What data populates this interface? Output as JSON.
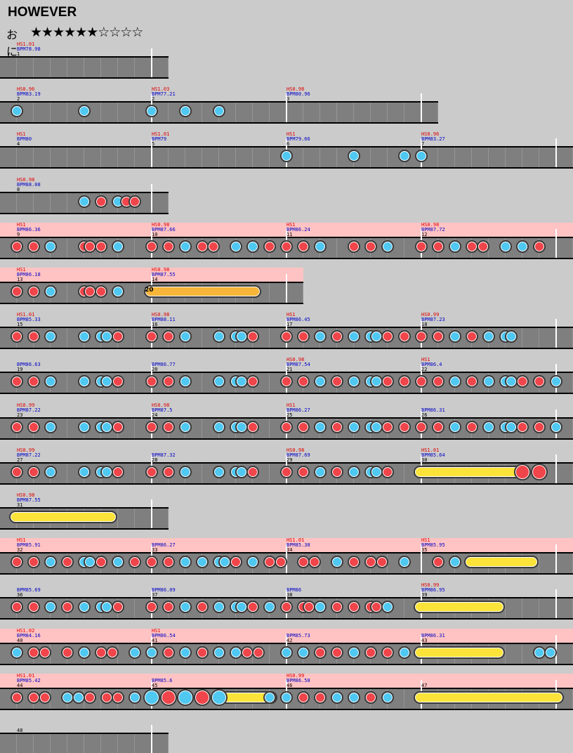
{
  "song": {
    "title": "HOWEVER",
    "difficulty": "おに",
    "stars": "★★★★★★☆☆☆☆",
    "stars_filled": 6,
    "stars_total": 10
  },
  "colors": {
    "background": "#cbcbcb",
    "lane": "#7f7f7f",
    "gogo": "#ffc3c3",
    "don": "#f0454a",
    "ka": "#4fc8f2",
    "roll": "#fbe33a",
    "balloon": "#f7b53a",
    "hs_text": "#e00000",
    "bpm_text": "#0000c8"
  },
  "rows": [
    {
      "gogo": false,
      "measures": [
        {
          "hs": "HS1.01",
          "bpm": "BPM78.98",
          "num": "1"
        }
      ],
      "notes": []
    },
    {
      "gogo": false,
      "measures": [
        {
          "hs": "HS0.96",
          "bpm": "BPM83.19",
          "num": "2"
        },
        {
          "hs": "HS1.03",
          "bpm": "BPM77.21",
          "num": "2"
        },
        {
          "hs": "HS0.98",
          "bpm": "BPM80.96",
          "num": "3"
        }
      ],
      "notes": [
        "k@0",
        "k@4",
        "k@8",
        "k@10",
        "k@12"
      ]
    },
    {
      "gogo": false,
      "measures": [
        {
          "hs": "HS1",
          "bpm": "BPM80",
          "num": "4"
        },
        {
          "hs": "HS1.01",
          "bpm": "BPM79",
          "num": "5"
        },
        {
          "hs": "HS1",
          "bpm": "BPM79.66",
          "num": "6"
        },
        {
          "hs": "HS0.96",
          "bpm": "BPM83.27",
          "num": "7"
        }
      ],
      "notes": [
        "k@16",
        "k@20",
        "k@23",
        "k@24"
      ]
    },
    {
      "gogo": false,
      "measures": [
        {
          "hs": "HS0.98",
          "bpm": "BPM88.08",
          "num": "8"
        }
      ],
      "notes": [
        "k@4",
        "d@5",
        "k@6",
        "d@6.5",
        "d@7"
      ]
    },
    {
      "gogo": true,
      "measures": [
        {
          "hs": "HS1",
          "bpm": "BPM86.36",
          "num": "9"
        },
        {
          "hs": "HS0.98",
          "bpm": "BPM87.66",
          "num": "10"
        },
        {
          "hs": "HS1",
          "bpm": "BPM86.24",
          "num": "11"
        },
        {
          "hs": "HS0.98",
          "bpm": "BPM87.72",
          "num": "12"
        }
      ],
      "notes": [
        "d@0",
        "d@1",
        "k@2",
        "d@4",
        "d@4.33",
        "d@5",
        "k@6",
        "d@8",
        "d@9",
        "k@10",
        "d@11",
        "d@11.67",
        "k@13",
        "k@14",
        "d@15",
        "d@16",
        "d@17",
        "k@18",
        "d@20",
        "d@21",
        "k@22",
        "d@24",
        "d@25",
        "k@26",
        "d@27",
        "d@27.67",
        "k@29",
        "k@30",
        "d@31"
      ]
    },
    {
      "gogo": true,
      "measures": [
        {
          "hs": "HS1",
          "bpm": "BPM86.18",
          "num": "13"
        },
        {
          "hs": "HS0.98",
          "bpm": "BPM87.55",
          "num": "14"
        }
      ],
      "notes": [
        "d@0",
        "d@1",
        "k@2",
        "d@4",
        "d@4.33",
        "d@5",
        "k@6"
      ],
      "balloon": {
        "start": 8,
        "end": 14.5,
        "count": "20"
      }
    },
    {
      "gogo": false,
      "measures": [
        {
          "hs": "HS1.01",
          "bpm": "BPM85.33",
          "num": "15"
        },
        {
          "hs": "HS0.98",
          "bpm": "BPM88.11",
          "num": "16"
        },
        {
          "hs": "HS1",
          "bpm": "BPM86.45",
          "num": "17"
        },
        {
          "hs": "HS0.99",
          "bpm": "BPM87.23",
          "num": "18"
        }
      ],
      "notes": [
        "d@0",
        "d@1",
        "k@2",
        "k@4",
        "k@5",
        "k@5.33",
        "d@6",
        "d@8",
        "d@9",
        "k@10",
        "k@12",
        "k@13",
        "k@13.33",
        "d@14",
        "d@16",
        "d@17",
        "k@18",
        "d@19",
        "k@20",
        "k@21",
        "k@21.33",
        "d@22",
        "d@23",
        "d@24",
        "d@25",
        "k@26",
        "d@27",
        "k@28",
        "k@29",
        "k@29.33"
      ]
    },
    {
      "gogo": false,
      "measures": [
        {
          "hs": "",
          "bpm": "BPM86.63",
          "num": "19"
        },
        {
          "hs": "",
          "bpm": "BPM86.77",
          "num": "20"
        },
        {
          "hs": "HS0.98",
          "bpm": "BPM87.54",
          "num": "21"
        },
        {
          "hs": "HS1",
          "bpm": "BPM86.4",
          "num": "22"
        }
      ],
      "notes": [
        "d@0",
        "d@1",
        "k@2",
        "k@4",
        "k@5",
        "k@5.33",
        "d@6",
        "d@8",
        "d@9",
        "k@10",
        "k@12",
        "k@13",
        "k@13.33",
        "d@14",
        "d@16",
        "d@17",
        "k@18",
        "d@19",
        "k@20",
        "k@21",
        "k@21.33",
        "d@22",
        "d@23",
        "d@24",
        "d@25",
        "k@26",
        "d@27",
        "k@28",
        "k@29",
        "k@29.33",
        "d@30",
        "d@31",
        "k@32"
      ]
    },
    {
      "gogo": false,
      "measures": [
        {
          "hs": "HS0.99",
          "bpm": "BPM87.22",
          "num": "23"
        },
        {
          "hs": "HS0.98",
          "bpm": "BPM87.5",
          "num": "24"
        },
        {
          "hs": "HS1",
          "bpm": "BPM86.27",
          "num": "25"
        },
        {
          "hs": "",
          "bpm": "BPM86.31",
          "num": "26"
        }
      ],
      "notes": [
        "d@0",
        "d@1",
        "k@2",
        "k@4",
        "k@5",
        "k@5.33",
        "d@6",
        "d@8",
        "d@9",
        "k@10",
        "k@12",
        "k@13",
        "k@13.33",
        "d@14",
        "d@16",
        "d@17",
        "k@18",
        "d@19",
        "k@20",
        "k@21",
        "k@21.33",
        "d@22",
        "d@23",
        "d@24",
        "d@25",
        "k@26",
        "d@27",
        "k@28",
        "k@29",
        "k@29.33",
        "d@30",
        "d@31",
        "k@32"
      ]
    },
    {
      "gogo": false,
      "measures": [
        {
          "hs": "HS0.99",
          "bpm": "BPM87.22",
          "num": "27"
        },
        {
          "hs": "",
          "bpm": "BPM87.32",
          "num": "28"
        },
        {
          "hs": "HS0.98",
          "bpm": "BPM87.69",
          "num": "29"
        },
        {
          "hs": "HS1.01",
          "bpm": "BPM85.64",
          "num": "30"
        }
      ],
      "notes": [
        "d@0",
        "d@1",
        "k@2",
        "k@4",
        "k@5",
        "k@5.33",
        "d@6",
        "d@8",
        "d@9",
        "k@10",
        "k@12",
        "k@13",
        "k@13.33",
        "d@14",
        "d@16",
        "d@17",
        "k@18",
        "d@19",
        "k@20",
        "k@21",
        "k@21.33",
        "d@22",
        "D@30",
        "D@31"
      ],
      "rolls": [
        {
          "start": 24,
          "end": 29.5
        }
      ]
    },
    {
      "gogo": false,
      "measures": [
        {
          "hs": "HS0.98",
          "bpm": "BPM87.55",
          "num": "31"
        }
      ],
      "notes": [],
      "rolls": [
        {
          "start": 0,
          "end": 5.5
        }
      ]
    },
    {
      "gogo": true,
      "measures": [
        {
          "hs": "HS1",
          "bpm": "BPM85.91",
          "num": "32"
        },
        {
          "hs": "",
          "bpm": "BPM86.27",
          "num": "33"
        },
        {
          "hs": "HS1.01",
          "bpm": "BPM85.38",
          "num": "34"
        },
        {
          "hs": "HS1",
          "bpm": "BPM85.95",
          "num": "35"
        }
      ],
      "notes": [
        "d@0",
        "d@1",
        "k@2",
        "d@3",
        "k@4",
        "k@4.33",
        "d@5",
        "k@6",
        "d@7",
        "d@8",
        "d@9",
        "k@10",
        "k@11",
        "k@12",
        "k@12.33",
        "d@13",
        "k@14",
        "d@15",
        "d@15.67",
        "d@17",
        "d@17.67",
        "k@19",
        "d@20",
        "d@21",
        "d@21.67",
        "k@23",
        "d@25",
        "k@26"
      ],
      "rolls": [
        {
          "start": 27,
          "end": 30.5
        }
      ]
    },
    {
      "gogo": false,
      "measures": [
        {
          "hs": "",
          "bpm": "BPM85.69",
          "num": "36"
        },
        {
          "hs": "",
          "bpm": "BPM86.09",
          "num": "37"
        },
        {
          "hs": "",
          "bpm": "BPM86",
          "num": "38"
        },
        {
          "hs": "HS0.99",
          "bpm": "BPM86.95",
          "num": "39"
        }
      ],
      "notes": [
        "d@0",
        "d@1",
        "k@2",
        "d@3",
        "k@4",
        "k@5",
        "k@5.33",
        "d@6",
        "d@8",
        "d@9",
        "k@10",
        "d@11",
        "k@12",
        "k@13",
        "k@13.33",
        "d@14",
        "k@15",
        "d@16",
        "d@17",
        "d@17.33",
        "k@18",
        "d@19",
        "d@20",
        "d@21",
        "d@21.33",
        "k@22"
      ],
      "rolls": [
        {
          "start": 24,
          "end": 28.5
        }
      ]
    },
    {
      "gogo": true,
      "measures": [
        {
          "hs": "HS1.02",
          "bpm": "BPM84.16",
          "num": "40"
        },
        {
          "hs": "HS1",
          "bpm": "BPM86.54",
          "num": "41"
        },
        {
          "hs": "",
          "bpm": "BPM85.73",
          "num": "42"
        },
        {
          "hs": "",
          "bpm": "BPM86.31",
          "num": "43"
        }
      ],
      "notes": [
        "k@0",
        "d@1",
        "d@1.67",
        "d@3",
        "k@4",
        "d@5",
        "d@5.67",
        "k@7",
        "k@8",
        "d@9",
        "k@10",
        "d@11",
        "k@12",
        "k@13",
        "d@13.67",
        "d@14.33",
        "k@16",
        "k@17",
        "d@18",
        "d@19",
        "k@20",
        "d@21",
        "d@22",
        "k@23",
        "k@31",
        "k@31.67"
      ],
      "rolls": [
        {
          "start": 24,
          "end": 28.5
        }
      ]
    },
    {
      "gogo": true,
      "measures": [
        {
          "hs": "HS1.01",
          "bpm": "BPM85.42",
          "num": "44"
        },
        {
          "hs": "",
          "bpm": "BPM85.6",
          "num": "45"
        },
        {
          "hs": "HS0.99",
          "bpm": "BPM86.58",
          "num": "46"
        },
        {
          "hs": "",
          "bpm": "",
          "num": "47"
        }
      ],
      "notes": [
        "d@0",
        "d@1",
        "d@1.67",
        "k@3",
        "k@3.67",
        "d@4.33",
        "d@5.33",
        "d@6",
        "k@7",
        "K@8",
        "D@9",
        "K@10",
        "D@11",
        "K@12",
        "k@15",
        "k@16",
        "d@17",
        "d@18",
        "k@19",
        "k@20",
        "d@21",
        "k@22"
      ],
      "rolls": [
        {
          "start": 12.5,
          "end": 15
        },
        {
          "start": 24,
          "end": 32
        }
      ]
    },
    {
      "gogo": false,
      "measures": [
        {
          "hs": "",
          "bpm": "",
          "num": "48"
        }
      ],
      "notes": []
    }
  ]
}
